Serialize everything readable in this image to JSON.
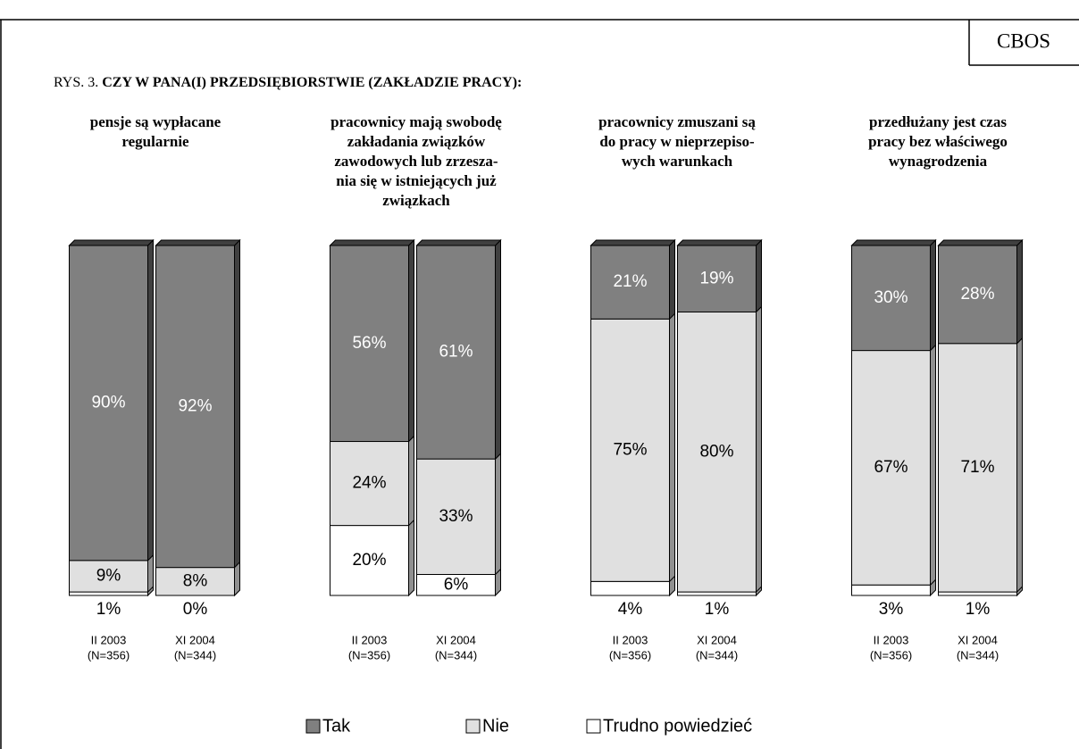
{
  "header": {
    "brand": "CBOS",
    "label": "RYS. 3.",
    "title": "CZY W PANA(I) PRZEDSIĘBIORSTWIE (ZAKŁADZIE PRACY):"
  },
  "legend": {
    "series": [
      {
        "name": "Tak",
        "color": "#808080",
        "side": "#404040"
      },
      {
        "name": "Nie",
        "color": "#e0e0e0",
        "side": "#909090"
      },
      {
        "name": "Trudno powiedzieć",
        "color": "#ffffff",
        "side": "#909090"
      }
    ]
  },
  "chart_data": [
    {
      "type": "stacked_bar",
      "title": [
        "pensje są wypłacane",
        "regularnie"
      ],
      "categories": [
        [
          "II 2003",
          "(N=356)"
        ],
        [
          "XI 2004",
          "(N=344)"
        ]
      ],
      "series": [
        {
          "values": [
            90,
            92
          ]
        },
        {
          "values": [
            9,
            8
          ]
        },
        {
          "values": [
            1,
            0
          ]
        }
      ]
    },
    {
      "type": "stacked_bar",
      "title": [
        "pracownicy mają swobodę",
        "zakładania związków",
        "zawodowych lub zrzesza-",
        "nia się w istniejących już",
        "związkach"
      ],
      "categories": [
        [
          "II 2003",
          "(N=356)"
        ],
        [
          "XI 2004",
          "(N=344)"
        ]
      ],
      "series": [
        {
          "values": [
            56,
            61
          ]
        },
        {
          "values": [
            24,
            33
          ]
        },
        {
          "values": [
            20,
            6
          ]
        }
      ]
    },
    {
      "type": "stacked_bar",
      "title": [
        "pracownicy zmuszani są",
        "do pracy w nieprzepiso-",
        "wych warunkach"
      ],
      "categories": [
        [
          "II 2003",
          "(N=356)"
        ],
        [
          "XI 2004",
          "(N=344)"
        ]
      ],
      "series": [
        {
          "values": [
            21,
            19
          ]
        },
        {
          "values": [
            75,
            80
          ]
        },
        {
          "values": [
            4,
            1
          ]
        }
      ]
    },
    {
      "type": "stacked_bar",
      "title": [
        "przedłużany jest czas",
        "pracy bez właściwego",
        "wynagrodzenia"
      ],
      "categories": [
        [
          "II 2003",
          "(N=356)"
        ],
        [
          "XI 2004",
          "(N=344)"
        ]
      ],
      "series": [
        {
          "values": [
            30,
            28
          ]
        },
        {
          "values": [
            67,
            71
          ]
        },
        {
          "values": [
            3,
            1
          ]
        }
      ]
    }
  ]
}
